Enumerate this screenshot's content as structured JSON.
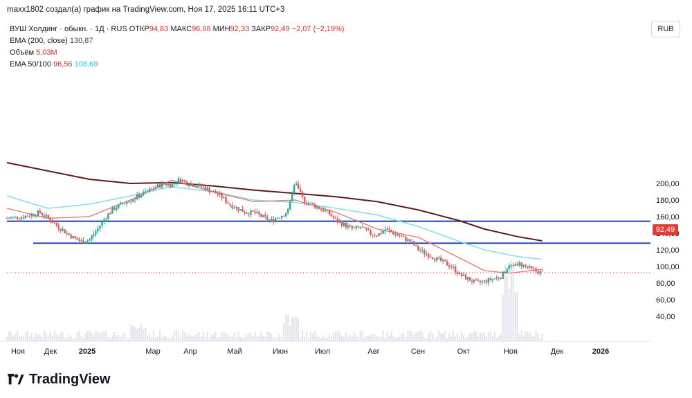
{
  "caption": "maxx1802 создал(а) график на TradingView.com, Ноя 17, 2025 16:11 UTC+3",
  "legend": {
    "symbol": "ВУШ Холдинг · обыкн. · 1Д · RUS",
    "open_label": "ОТКР",
    "open": "94,83",
    "high_label": "МАКС",
    "high": "96,68",
    "low_label": "МИН",
    "low": "92,33",
    "close_label": "ЗАКР",
    "close": "92,49",
    "change": "−2,07 (−2,19%)",
    "ema200_label": "EMA (200, close)",
    "ema200_value": "130,87",
    "volume_label": "Объём",
    "volume_value": "5,03M",
    "ema_pair_label": "EMA 50/100",
    "ema50_value": "96,56",
    "ema100_value": "108,69"
  },
  "currency_button": "RUB",
  "price_tag": "92,49",
  "brand": "TradingView",
  "colors": {
    "up": "#26a69a",
    "down": "#ef5350",
    "ema200": "#5d1a1a",
    "ema100": "#80deea",
    "ema50": "#e57373",
    "support": "#1e40af",
    "volume": "#e0e3eb"
  },
  "chart_data": {
    "type": "candlestick",
    "y_ticks": [
      "200,00",
      "180,00",
      "160,00",
      "140,00",
      "120,00",
      "100,00",
      "80,00",
      "60,00",
      "40,00"
    ],
    "x_ticks": [
      "Ноя",
      "Дек",
      "2025",
      "Мар",
      "Апр",
      "Май",
      "Июн",
      "Июл",
      "Авг",
      "Сен",
      "Окт",
      "Ноя",
      "Дек",
      "2026"
    ],
    "ylim": [
      25,
      215
    ],
    "horizontal_lines": [
      154.5,
      128,
      92.49
    ],
    "price_path": [
      [
        0,
        158
      ],
      [
        2,
        160
      ],
      [
        4,
        165
      ],
      [
        5,
        158
      ],
      [
        6,
        150
      ],
      [
        7,
        142
      ],
      [
        8,
        135
      ],
      [
        9,
        130
      ],
      [
        10,
        132
      ],
      [
        11,
        145
      ],
      [
        12,
        160
      ],
      [
        13,
        170
      ],
      [
        14,
        175
      ],
      [
        15,
        180
      ],
      [
        16,
        185
      ],
      [
        17,
        190
      ],
      [
        18,
        195
      ],
      [
        19,
        200
      ],
      [
        20,
        198
      ],
      [
        21,
        205
      ],
      [
        22,
        200
      ],
      [
        23,
        198
      ],
      [
        24,
        195
      ],
      [
        25,
        190
      ],
      [
        26,
        185
      ],
      [
        27,
        175
      ],
      [
        28,
        170
      ],
      [
        29,
        165
      ],
      [
        30,
        165
      ],
      [
        31,
        160
      ],
      [
        32,
        155
      ],
      [
        33,
        160
      ],
      [
        34,
        165
      ],
      [
        35,
        200
      ],
      [
        36,
        180
      ],
      [
        37,
        175
      ],
      [
        38,
        170
      ],
      [
        39,
        165
      ],
      [
        40,
        155
      ],
      [
        41,
        150
      ],
      [
        42,
        145
      ],
      [
        43,
        147
      ],
      [
        44,
        140
      ],
      [
        45,
        138
      ],
      [
        46,
        145
      ],
      [
        47,
        140
      ],
      [
        48,
        135
      ],
      [
        49,
        130
      ],
      [
        50,
        120
      ],
      [
        51,
        115
      ],
      [
        52,
        110
      ],
      [
        53,
        105
      ],
      [
        54,
        100
      ],
      [
        55,
        90
      ],
      [
        56,
        85
      ],
      [
        57,
        80
      ],
      [
        58,
        82
      ],
      [
        59,
        85
      ],
      [
        60,
        88
      ],
      [
        61,
        100
      ],
      [
        62,
        104
      ],
      [
        63,
        100
      ],
      [
        64,
        95
      ],
      [
        65,
        92.49
      ]
    ],
    "ema200_path": [
      [
        0,
        225
      ],
      [
        5,
        215
      ],
      [
        10,
        205
      ],
      [
        15,
        200
      ],
      [
        20,
        201
      ],
      [
        25,
        197
      ],
      [
        30,
        192
      ],
      [
        35,
        188
      ],
      [
        40,
        184
      ],
      [
        45,
        178
      ],
      [
        50,
        168
      ],
      [
        55,
        155
      ],
      [
        58,
        145
      ],
      [
        62,
        136
      ],
      [
        65,
        130.87
      ]
    ],
    "ema100_path": [
      [
        0,
        185
      ],
      [
        5,
        170
      ],
      [
        10,
        175
      ],
      [
        15,
        185
      ],
      [
        20,
        196
      ],
      [
        25,
        190
      ],
      [
        30,
        180
      ],
      [
        35,
        177
      ],
      [
        40,
        170
      ],
      [
        45,
        162
      ],
      [
        50,
        148
      ],
      [
        55,
        130
      ],
      [
        58,
        120
      ],
      [
        62,
        112
      ],
      [
        65,
        108.69
      ]
    ],
    "ema50_path": [
      [
        0,
        170
      ],
      [
        5,
        158
      ],
      [
        10,
        160
      ],
      [
        15,
        180
      ],
      [
        20,
        204
      ],
      [
        25,
        190
      ],
      [
        30,
        178
      ],
      [
        35,
        180
      ],
      [
        40,
        165
      ],
      [
        45,
        145
      ],
      [
        50,
        135
      ],
      [
        55,
        110
      ],
      [
        58,
        95
      ],
      [
        61,
        92
      ],
      [
        65,
        96.56
      ]
    ]
  }
}
